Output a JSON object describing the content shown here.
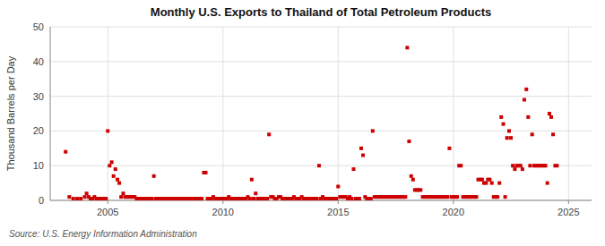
{
  "chart_data": {
    "type": "scatter",
    "title": "Monthly U.S. Exports to Thailand of Total Petroleum Products",
    "y_label": "Thousand Barrels per Day",
    "annotations": [
      "Source: U.S. Energy Information Administration"
    ],
    "color": "#cc0000",
    "marker": "square",
    "grid": true,
    "xlim": [
      2002.5,
      2026.0
    ],
    "xticks": [
      2005,
      2010,
      2015,
      2020,
      2025
    ],
    "ylim": [
      0,
      50
    ],
    "yticks": [
      0,
      10,
      20,
      30,
      40,
      50
    ],
    "x": [
      2003.17,
      2003.33,
      2003.5,
      2003.67,
      2003.83,
      2004.0,
      2004.08,
      2004.17,
      2004.25,
      2004.33,
      2004.42,
      2004.5,
      2004.58,
      2004.67,
      2004.75,
      2004.83,
      2004.92,
      2005.0,
      2005.08,
      2005.17,
      2005.25,
      2005.33,
      2005.42,
      2005.5,
      2005.58,
      2005.67,
      2005.75,
      2005.83,
      2005.92,
      2006.0,
      2006.08,
      2006.17,
      2006.25,
      2006.33,
      2006.42,
      2006.5,
      2006.58,
      2006.67,
      2006.75,
      2006.83,
      2006.92,
      2007.0,
      2007.08,
      2007.17,
      2007.25,
      2007.33,
      2007.42,
      2007.5,
      2007.58,
      2007.67,
      2007.75,
      2007.83,
      2007.92,
      2008.0,
      2008.08,
      2008.17,
      2008.25,
      2008.33,
      2008.42,
      2008.5,
      2008.58,
      2008.67,
      2008.75,
      2008.83,
      2008.92,
      2009.0,
      2009.08,
      2009.17,
      2009.25,
      2009.33,
      2009.42,
      2009.5,
      2009.58,
      2009.67,
      2009.75,
      2009.83,
      2009.92,
      2010.0,
      2010.08,
      2010.17,
      2010.25,
      2010.33,
      2010.42,
      2010.5,
      2010.58,
      2010.67,
      2010.75,
      2010.83,
      2010.92,
      2011.0,
      2011.08,
      2011.17,
      2011.25,
      2011.33,
      2011.42,
      2011.5,
      2011.58,
      2011.67,
      2011.75,
      2011.83,
      2011.92,
      2012.0,
      2012.08,
      2012.17,
      2012.25,
      2012.33,
      2012.42,
      2012.5,
      2012.58,
      2012.67,
      2012.75,
      2012.83,
      2012.92,
      2013.0,
      2013.08,
      2013.17,
      2013.25,
      2013.33,
      2013.42,
      2013.5,
      2013.58,
      2013.67,
      2013.75,
      2013.83,
      2013.92,
      2014.0,
      2014.08,
      2014.17,
      2014.25,
      2014.33,
      2014.42,
      2014.5,
      2014.58,
      2014.67,
      2014.75,
      2014.83,
      2014.92,
      2015.0,
      2015.08,
      2015.17,
      2015.25,
      2015.33,
      2015.42,
      2015.5,
      2015.58,
      2015.67,
      2015.75,
      2015.83,
      2015.92,
      2016.0,
      2016.08,
      2016.17,
      2016.25,
      2016.33,
      2016.42,
      2016.5,
      2016.58,
      2016.67,
      2016.75,
      2016.83,
      2016.92,
      2017.0,
      2017.08,
      2017.17,
      2017.25,
      2017.33,
      2017.42,
      2017.5,
      2017.58,
      2017.67,
      2017.75,
      2017.83,
      2017.92,
      2018.0,
      2018.08,
      2018.17,
      2018.25,
      2018.33,
      2018.42,
      2018.5,
      2018.58,
      2018.67,
      2018.75,
      2018.83,
      2018.92,
      2019.0,
      2019.08,
      2019.17,
      2019.25,
      2019.33,
      2019.42,
      2019.5,
      2019.58,
      2019.67,
      2019.75,
      2019.83,
      2019.92,
      2020.0,
      2020.08,
      2020.17,
      2020.25,
      2020.33,
      2020.42,
      2020.5,
      2020.58,
      2020.67,
      2020.75,
      2020.83,
      2020.92,
      2021.0,
      2021.08,
      2021.17,
      2021.25,
      2021.33,
      2021.42,
      2021.5,
      2021.58,
      2021.67,
      2021.75,
      2021.83,
      2021.92,
      2022.0,
      2022.08,
      2022.17,
      2022.25,
      2022.33,
      2022.42,
      2022.5,
      2022.58,
      2022.67,
      2022.75,
      2022.83,
      2022.92,
      2023.0,
      2023.08,
      2023.17,
      2023.25,
      2023.33,
      2023.42,
      2023.5,
      2023.58,
      2023.67,
      2023.75,
      2023.83,
      2023.92,
      2024.0,
      2024.08,
      2024.17,
      2024.25,
      2024.33,
      2024.42,
      2024.5
    ],
    "values": [
      14,
      1.0,
      0.5,
      0.5,
      0.5,
      1.0,
      2.0,
      1.0,
      0.5,
      0.5,
      1.0,
      0.5,
      0.5,
      0.5,
      0.5,
      0.5,
      0.5,
      20,
      10,
      11,
      7,
      9,
      6,
      5,
      1.0,
      2.0,
      1.0,
      1.0,
      1.0,
      1.0,
      1.0,
      1.0,
      0.5,
      0.5,
      0.5,
      0.5,
      0.5,
      0.5,
      0.5,
      0.5,
      0.5,
      7,
      0.5,
      0.5,
      0.5,
      0.5,
      0.5,
      0.5,
      0.5,
      0.5,
      0.5,
      0.5,
      0.5,
      0.5,
      0.5,
      0.5,
      0.5,
      0.5,
      0.5,
      0.5,
      0.5,
      0.5,
      0.5,
      0.5,
      0.5,
      0.5,
      0.5,
      8,
      8,
      0.5,
      0.5,
      0.5,
      1.0,
      0.5,
      0.5,
      0.5,
      0.5,
      0.5,
      0.5,
      0.5,
      1.0,
      0.5,
      0.5,
      0.5,
      0.5,
      0.5,
      0.5,
      0.5,
      0.5,
      0.5,
      1.0,
      0.5,
      6,
      0.5,
      2.0,
      0.5,
      0.5,
      0.5,
      0.5,
      0.5,
      0.5,
      19,
      1.0,
      1.0,
      0.5,
      0.5,
      1.0,
      1.0,
      0.5,
      0.5,
      0.5,
      0.5,
      0.5,
      0.5,
      1.0,
      0.5,
      0.5,
      0.5,
      1.0,
      0.5,
      0.5,
      0.5,
      0.5,
      0.5,
      0.5,
      0.5,
      0.5,
      10,
      0.5,
      1.0,
      0.5,
      0.5,
      0.5,
      0.5,
      0.5,
      0.5,
      0.5,
      4,
      1.0,
      1.0,
      1.0,
      1.0,
      0.5,
      1.0,
      0.5,
      9,
      0.5,
      0.5,
      0.5,
      15,
      13,
      1.0,
      0.5,
      0.5,
      0.5,
      20,
      1.0,
      1.0,
      1.0,
      1.0,
      1.0,
      1.0,
      1.0,
      1.0,
      1.0,
      1.0,
      1.0,
      1.0,
      1.0,
      1.0,
      1.0,
      1.0,
      1.0,
      44,
      17,
      7,
      6,
      3,
      3,
      3,
      3,
      1.0,
      1.0,
      1.0,
      1.0,
      1.0,
      1.0,
      1.0,
      1.0,
      1.0,
      1.0,
      1.0,
      1.0,
      1.0,
      1.0,
      15,
      1.0,
      1.0,
      1.0,
      1.0,
      10,
      10,
      1.0,
      1.0,
      1.0,
      1.0,
      1.0,
      1.0,
      1.0,
      1.0,
      6,
      6,
      6,
      5,
      5,
      6,
      6,
      5,
      1.0,
      1.0,
      1.0,
      5,
      24,
      22,
      1.0,
      18,
      20,
      18,
      10,
      9,
      10,
      10,
      10,
      9,
      29,
      32,
      24,
      10,
      19,
      10,
      10,
      10,
      10,
      10,
      10,
      10,
      5,
      25,
      24,
      19,
      10,
      10
    ]
  }
}
